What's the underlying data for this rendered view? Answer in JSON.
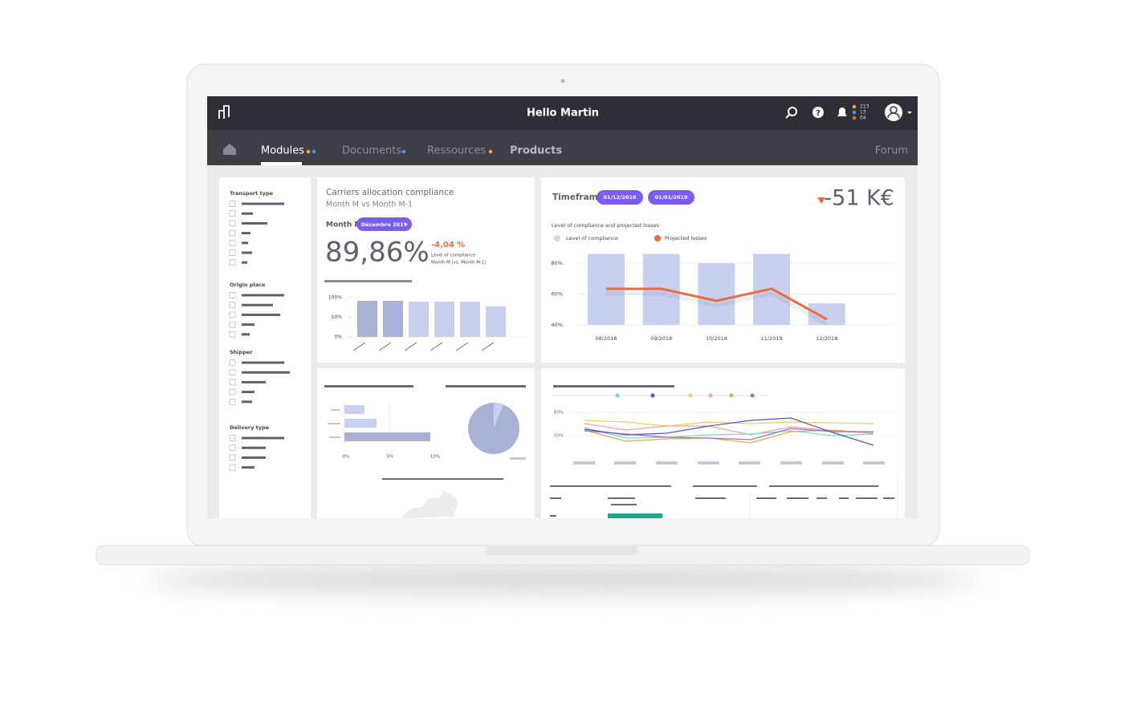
{
  "header": {
    "title": "Hello Martin",
    "notifications": [
      "213",
      "13",
      "04"
    ]
  },
  "nav": [
    "Modules",
    "Documents",
    "Ressources",
    "Products",
    "Forum"
  ],
  "filters": [
    "Transport type",
    "Origin place",
    "Shipper",
    "Delivery type"
  ],
  "compliance_card": {
    "title": "Carriers allocation compliance",
    "subtitle": "Month M vs Month M-1",
    "period_label": "Month M",
    "period": "Décembre 2019",
    "value": "89,86%",
    "delta": "-4,04 %",
    "delta_label": "Level of compliance",
    "delta_note": "Month M [vs. Month M-1]",
    "chart": {
      "type": "bar",
      "values": [
        92,
        92,
        90,
        90,
        90,
        78
      ],
      "colors": [
        "#aab1d6",
        "#aab1d6",
        "#c9d0ee",
        "#c9d0ee",
        "#c9d0ee",
        "#c9d0ee"
      ],
      "ylim": [
        0,
        100
      ],
      "yticks": [
        {
          "value": 100,
          "label": "100%"
        },
        {
          "value": 50,
          "label": "50%"
        },
        {
          "value": 0,
          "label": "0%"
        }
      ]
    }
  },
  "losses_card": {
    "timeframe_label": "Timeframe",
    "dates": [
      "01/12/2018",
      "01/01/2019"
    ],
    "total": "-51 K€",
    "chart": {
      "type": "bar",
      "title": "Level of compliance and projected losses",
      "categories": [
        "08/2018",
        "09/2018",
        "10/2018",
        "11/2018",
        "12/2018"
      ],
      "series": [
        {
          "name": "Level of compliance",
          "type": "bar",
          "color": "#c9d0ee",
          "values": [
            86,
            86,
            80,
            86,
            54
          ]
        },
        {
          "name": "Projected losses",
          "type": "line",
          "color": "#ee6a3c",
          "values": [
            63.4,
            63.4,
            55.6,
            63.4,
            43.7
          ]
        }
      ],
      "ylim": [
        40,
        90
      ],
      "yticks": [
        {
          "value": 80,
          "label": "80%"
        },
        {
          "value": 60,
          "label": "60%"
        },
        {
          "value": 40,
          "label": "40%"
        }
      ],
      "grid": true
    }
  },
  "bottom_left": {
    "axis_labels": [
      "0%",
      "5%",
      "10%"
    ]
  },
  "bottom_right": {
    "axis_labels": [
      "80%",
      "50%"
    ]
  }
}
